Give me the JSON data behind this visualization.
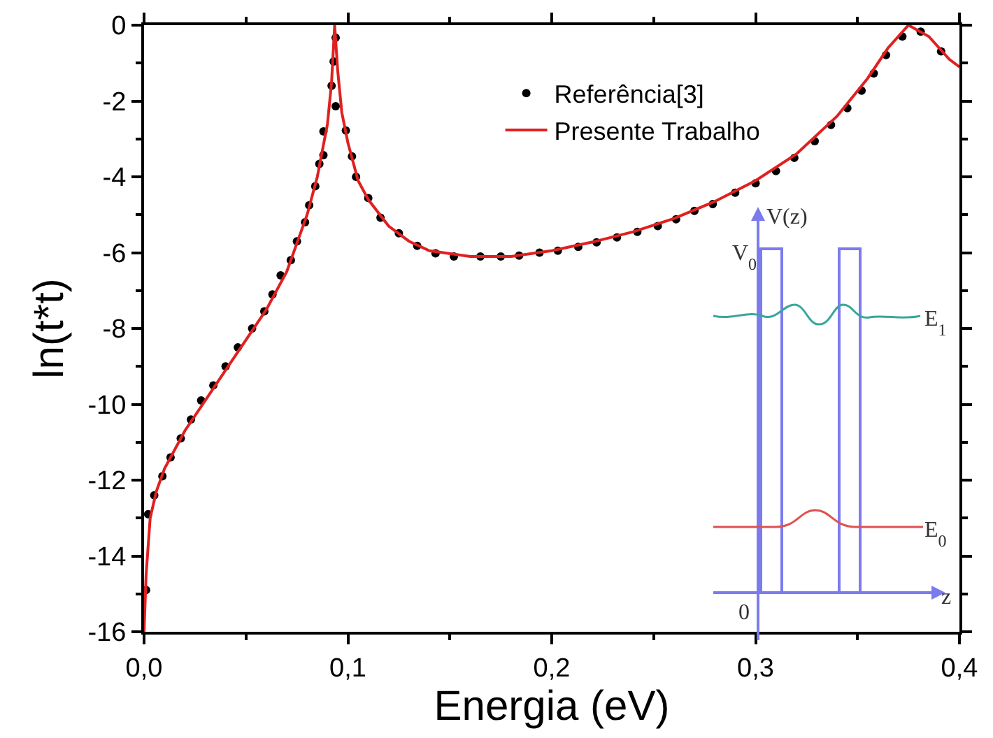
{
  "chart_data": {
    "type": "line",
    "xlabel": "Energia (eV)",
    "ylabel": "ln(t*t)",
    "xlim": [
      0,
      0.4
    ],
    "xticks": [
      {
        "value": 0,
        "label": "0,0"
      },
      {
        "value": 0.1,
        "label": "0,1"
      },
      {
        "value": 0.2,
        "label": "0,2"
      },
      {
        "value": 0.3,
        "label": "0,3"
      },
      {
        "value": 0.4,
        "label": "0,4"
      }
    ],
    "ylim": [
      -16,
      0
    ],
    "yticks": [
      -16,
      -14,
      -12,
      -10,
      -8,
      -6,
      -4,
      -2,
      0
    ],
    "grid": false,
    "legend": "top",
    "series": [
      {
        "name": "Referência[3]",
        "type": "scatter",
        "marker": "circle",
        "color": "#000000",
        "x": [
          0.001,
          0.002,
          0.005,
          0.009,
          0.013,
          0.018,
          0.023,
          0.028,
          0.034,
          0.04,
          0.046,
          0.053,
          0.059,
          0.063,
          0.067,
          0.072,
          0.075,
          0.079,
          0.081,
          0.084,
          0.086,
          0.088,
          0.088,
          0.092,
          0.093,
          0.094,
          0.094,
          0.099,
          0.102,
          0.104,
          0.11,
          0.116,
          0.125,
          0.134,
          0.143,
          0.152,
          0.165,
          0.175,
          0.184,
          0.194,
          0.203,
          0.213,
          0.222,
          0.232,
          0.242,
          0.252,
          0.261,
          0.27,
          0.279,
          0.29,
          0.3,
          0.31,
          0.319,
          0.329,
          0.337,
          0.345,
          0.352,
          0.358,
          0.364,
          0.372,
          0.381,
          0.391
        ],
        "values": [
          -14.9,
          -12.9,
          -12.4,
          -11.9,
          -11.4,
          -10.9,
          -10.4,
          -9.9,
          -9.5,
          -9.0,
          -8.5,
          -8.0,
          -7.55,
          -7.1,
          -6.6,
          -6.2,
          -5.7,
          -5.2,
          -4.75,
          -4.25,
          -3.66,
          -3.43,
          -2.8,
          -1.6,
          -0.96,
          -0.33,
          -2.14,
          -2.78,
          -3.46,
          -4.0,
          -4.56,
          -5.08,
          -5.49,
          -5.82,
          -6.02,
          -6.1,
          -6.1,
          -6.1,
          -6.08,
          -6.0,
          -5.95,
          -5.85,
          -5.73,
          -5.6,
          -5.45,
          -5.3,
          -5.12,
          -4.9,
          -4.72,
          -4.42,
          -4.17,
          -3.85,
          -3.5,
          -3.06,
          -2.63,
          -2.19,
          -1.73,
          -1.27,
          -0.79,
          -0.3,
          -0.17,
          -0.69
        ]
      },
      {
        "name": "Presente Trabalho",
        "type": "line",
        "marker": "none",
        "line_style": "solid",
        "color": "#e02020",
        "x": [
          0,
          0.001,
          0.003,
          0.006,
          0.01,
          0.02,
          0.03,
          0.04,
          0.05,
          0.06,
          0.07,
          0.08,
          0.085,
          0.09,
          0.092,
          0.0935,
          0.095,
          0.097,
          0.1,
          0.105,
          0.11,
          0.12,
          0.13,
          0.14,
          0.16,
          0.18,
          0.2,
          0.22,
          0.24,
          0.26,
          0.28,
          0.3,
          0.32,
          0.34,
          0.355,
          0.365,
          0.375,
          0.385,
          0.395,
          0.4
        ],
        "values": [
          -16,
          -14.5,
          -13,
          -12.3,
          -11.7,
          -10.7,
          -9.9,
          -9.1,
          -8.3,
          -7.5,
          -6.5,
          -5.0,
          -4.0,
          -2.6,
          -1.5,
          0,
          -1.2,
          -2.3,
          -3.1,
          -4.1,
          -4.6,
          -5.3,
          -5.7,
          -5.95,
          -6.1,
          -6.1,
          -5.95,
          -5.72,
          -5.45,
          -5.1,
          -4.65,
          -4.1,
          -3.4,
          -2.4,
          -1.4,
          -0.6,
          0,
          -0.3,
          -0.9,
          -1.1
        ]
      }
    ],
    "annotations": [
      "V(z)",
      "V$_{0}$",
      "E$_{1}$",
      "E$_{0}$",
      "0",
      "z"
    ]
  }
}
